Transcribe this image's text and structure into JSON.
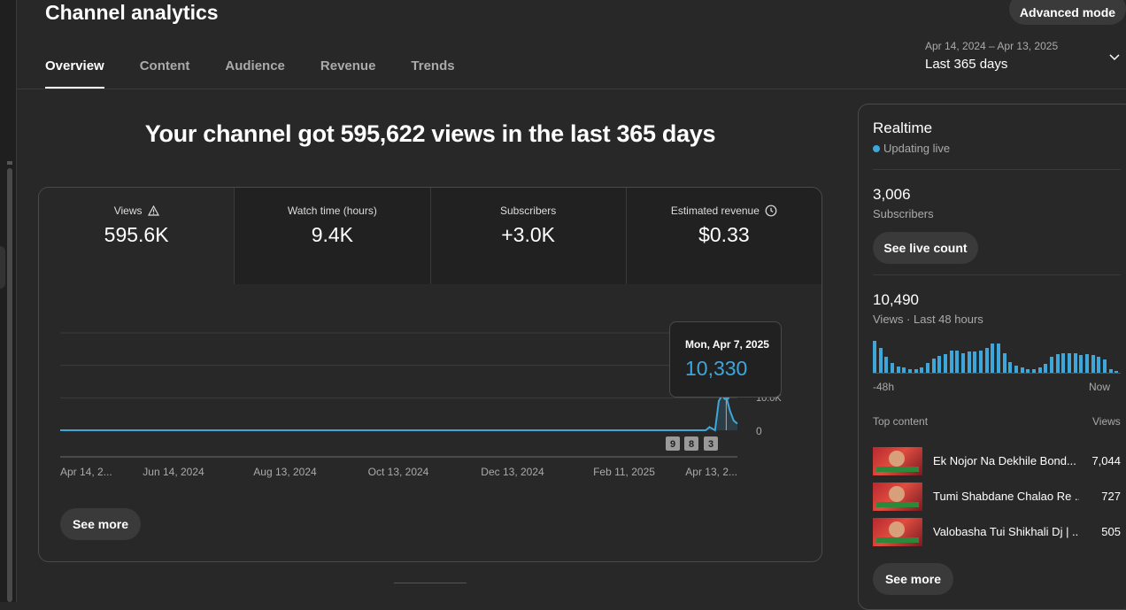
{
  "header": {
    "title": "Channel analytics",
    "advanced_mode": "Advanced mode",
    "tabs": [
      {
        "label": "Overview",
        "active": true
      },
      {
        "label": "Content",
        "active": false
      },
      {
        "label": "Audience",
        "active": false
      },
      {
        "label": "Revenue",
        "active": false
      },
      {
        "label": "Trends",
        "active": false
      }
    ],
    "date_range": {
      "range": "Apr 14, 2024 – Apr 13, 2025",
      "label": "Last 365 days"
    }
  },
  "main": {
    "headline": "Your channel got 595,622 views in the last 365 days",
    "metrics": [
      {
        "label": "Views",
        "value": "595.6K",
        "icon": "warning-icon"
      },
      {
        "label": "Watch time (hours)",
        "value": "9.4K"
      },
      {
        "label": "Subscribers",
        "value": "+3.0K"
      },
      {
        "label": "Estimated revenue",
        "value": "$0.33",
        "icon": "clock-icon"
      }
    ],
    "see_more": "See more",
    "tooltip": {
      "date": "Mon, Apr 7, 2025",
      "value": "10,330"
    },
    "chart_y_tick_zero": "0",
    "chart_y_tick_partial": "10.0K",
    "markers": [
      "9",
      "8",
      "3"
    ]
  },
  "chart_data": {
    "type": "line",
    "title": "",
    "xlabel": "",
    "ylabel": "",
    "x_ticks": [
      "Apr 14, 2...",
      "Jun 14, 2024",
      "Aug 13, 2024",
      "Oct 13, 2024",
      "Dec 13, 2024",
      "Feb 11, 2025",
      "Apr 13, 2..."
    ],
    "series": [
      {
        "values_note": "near-zero daily views until early April 2025",
        "x": [
          "Apr 14, 2024",
          "Jun 14, 2024",
          "Aug 13, 2024",
          "Oct 13, 2024",
          "Dec 13, 2024",
          "Feb 11, 2025",
          "Mar 27, 2025",
          "Mar 29, 2025",
          "Apr 1, 2025",
          "Apr 3, 2025",
          "Apr 5, 2025",
          "Apr 7, 2025",
          "Apr 9, 2025",
          "Apr 11, 2025",
          "Apr 13, 2025"
        ],
        "y": [
          0,
          0,
          0,
          0,
          0,
          0,
          0,
          1000,
          0,
          9000,
          11000,
          10330,
          6000,
          3000,
          2000
        ]
      }
    ],
    "ylim": [
      0,
      30000
    ],
    "color": "#3ea6d8"
  },
  "realtime": {
    "title": "Realtime",
    "status": "Updating live",
    "subscribers_value": "3,006",
    "subscribers_label": "Subscribers",
    "live_count_button": "See live count",
    "views_value": "10,490",
    "views_label": "Views · Last 48 hours",
    "axis_left": "-48h",
    "axis_right": "Now",
    "bar_values": [
      32,
      25,
      16,
      10,
      6,
      5,
      4,
      4,
      5,
      10,
      14,
      17,
      19,
      22,
      22,
      20,
      21,
      21,
      22,
      25,
      29,
      29,
      20,
      11,
      7,
      5,
      4,
      4,
      5,
      9,
      16,
      19,
      20,
      20,
      20,
      18,
      19,
      18,
      16,
      13,
      4,
      2
    ],
    "top_content_label": "Top content",
    "top_content_views_label": "Views",
    "items": [
      {
        "title": "Ek Nojor Na Dekhile Bond...",
        "views": "7,044"
      },
      {
        "title": "Tumi Shabdane Chalao Re ...",
        "views": "727"
      },
      {
        "title": "Valobasha Tui Shikhali Dj | ...",
        "views": "505"
      }
    ],
    "see_more": "See more"
  }
}
